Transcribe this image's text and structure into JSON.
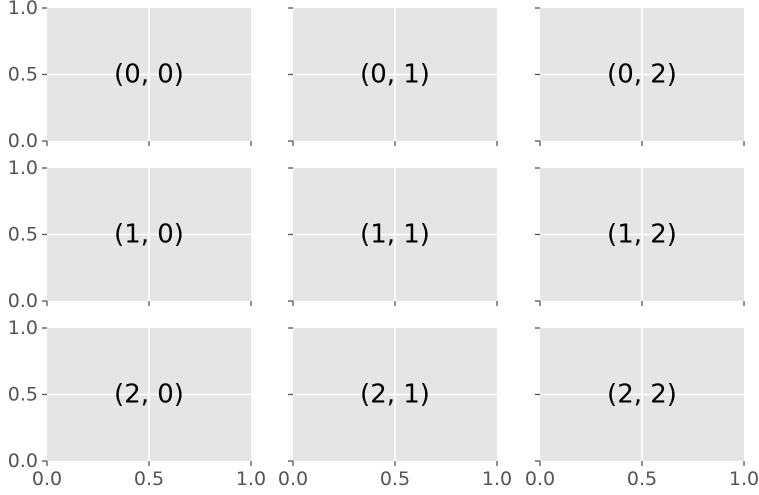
{
  "chart_data": {
    "type": "grid-of-subplots",
    "rows": 3,
    "cols": 3,
    "sharex": true,
    "sharey": true,
    "xlim": [
      0.0,
      1.0
    ],
    "ylim": [
      0.0,
      1.0
    ],
    "xticks": [
      "0.0",
      "0.5",
      "1.0"
    ],
    "yticks": [
      "0.0",
      "0.5",
      "1.0"
    ],
    "grid": true,
    "style": "ggplot",
    "colors": {
      "axes_bg": "#e5e5e5",
      "grid": "#ffffff",
      "tick": "#555555",
      "text": "#000000"
    },
    "panels": [
      {
        "row": 0,
        "col": 0,
        "text": "(0, 0)",
        "text_x": 0.5,
        "text_y": 0.5
      },
      {
        "row": 0,
        "col": 1,
        "text": "(0, 1)",
        "text_x": 0.5,
        "text_y": 0.5
      },
      {
        "row": 0,
        "col": 2,
        "text": "(0, 2)",
        "text_x": 0.5,
        "text_y": 0.5
      },
      {
        "row": 1,
        "col": 0,
        "text": "(1, 0)",
        "text_x": 0.5,
        "text_y": 0.5
      },
      {
        "row": 1,
        "col": 1,
        "text": "(1, 1)",
        "text_x": 0.5,
        "text_y": 0.5
      },
      {
        "row": 1,
        "col": 2,
        "text": "(1, 2)",
        "text_x": 0.5,
        "text_y": 0.5
      },
      {
        "row": 2,
        "col": 0,
        "text": "(2, 0)",
        "text_x": 0.5,
        "text_y": 0.5
      },
      {
        "row": 2,
        "col": 1,
        "text": "(2, 1)",
        "text_x": 0.5,
        "text_y": 0.5
      },
      {
        "row": 2,
        "col": 2,
        "text": "(2, 2)",
        "text_x": 0.5,
        "text_y": 0.5
      }
    ]
  }
}
